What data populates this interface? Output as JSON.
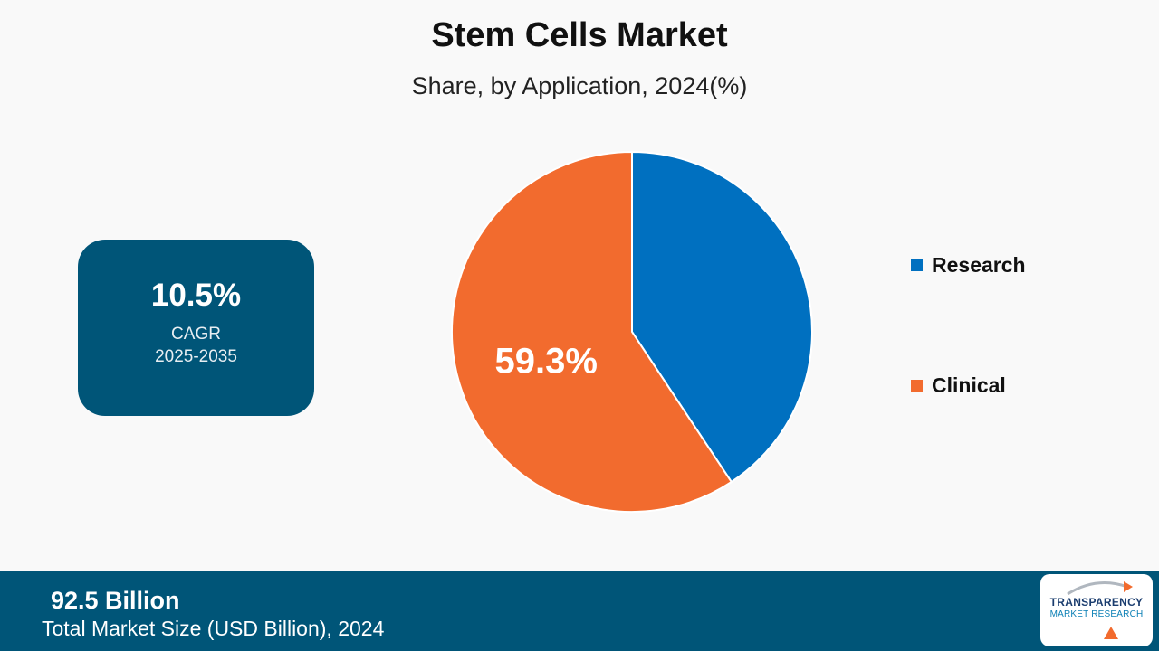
{
  "chart_data": {
    "type": "pie",
    "title": "Stem Cells Market",
    "subtitle": "Share, by Application, 2024(%)",
    "categories": [
      "Research",
      "Clinical"
    ],
    "values": [
      40.7,
      59.3
    ],
    "data_labels": [
      "",
      "59.3%"
    ],
    "colors": [
      "#0070c0",
      "#f26b2e"
    ],
    "legend_position": "right"
  },
  "cagr": {
    "value": "10.5%",
    "label": "CAGR",
    "period": "2025-2035"
  },
  "footer": {
    "market_size": "92.5  Billion",
    "market_size_label": "Total Market Size (USD Billion), 2024"
  },
  "logo": {
    "name": "TRANSPARENCY",
    "sub": "MARKET RESEARCH"
  },
  "colors": {
    "background": "#f9f9f9",
    "brand_blue": "#005578",
    "research": "#0070c0",
    "clinical": "#f26b2e"
  }
}
